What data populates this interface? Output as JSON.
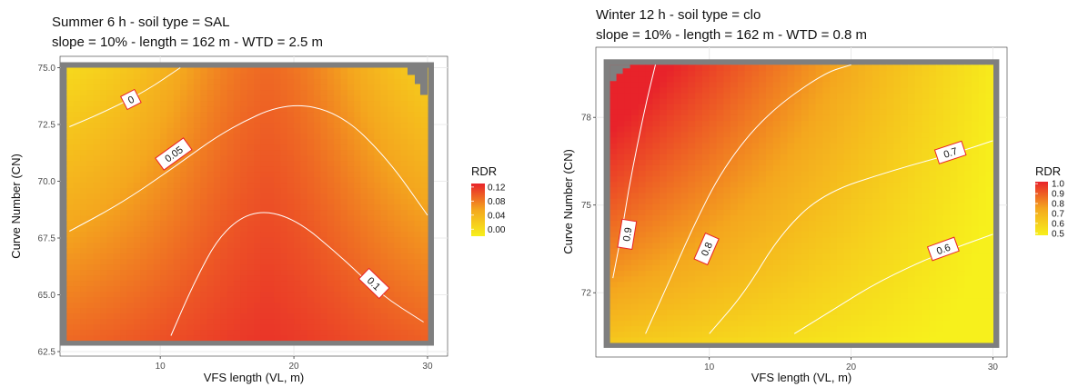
{
  "chart_data": [
    {
      "type": "heatmap",
      "title": "Summer 6 h - soil type = SAL",
      "subtitle": "slope = 10% - length = 162 m - WTD = 2.5 m",
      "xlabel": "VFS length (VL, m)",
      "ylabel": "Curve Number (CN)",
      "xlim": [
        2.5,
        31.5
      ],
      "ylim": [
        62.3,
        75.5
      ],
      "x_ticks": [
        10,
        20,
        30
      ],
      "x_tick_labels": [
        "10",
        "20",
        "30"
      ],
      "y_ticks": [
        62.5,
        65.0,
        67.5,
        70.0,
        72.5,
        75.0
      ],
      "y_tick_labels": [
        "62.5",
        "65.0",
        "67.5",
        "70.0",
        "72.5",
        "75.0"
      ],
      "data_x_range": [
        3,
        30
      ],
      "data_y_range": [
        63,
        75
      ],
      "legend_title": "RDR",
      "legend_ticks": [
        0.12,
        0.08,
        0.04,
        0.0
      ],
      "legend_tick_labels": [
        "0.12",
        "0.08",
        "0.04",
        "0.00"
      ],
      "color_range": [
        -0.02,
        0.13
      ],
      "color_low": "#f7f01c",
      "color_high": "#e8232a",
      "contour_levels": [
        "0",
        "0.05",
        "0.1"
      ],
      "contours": [
        {
          "level": "0",
          "points": [
            [
              3.2,
              72.4
            ],
            [
              6,
              73.1
            ],
            [
              9,
              74.0
            ],
            [
              11.5,
              75.0
            ]
          ],
          "label_at": [
            7.8,
            73.6
          ]
        },
        {
          "level": "0.05",
          "points": [
            [
              3.2,
              67.8
            ],
            [
              7,
              69.0
            ],
            [
              11,
              70.6
            ],
            [
              15,
              72.3
            ],
            [
              19.5,
              73.5
            ],
            [
              23.5,
              73.0
            ],
            [
              27,
              71.0
            ],
            [
              30,
              68.5
            ]
          ],
          "label_at": [
            11.0,
            71.2
          ]
        },
        {
          "level": "0.1",
          "points": [
            [
              10.8,
              63.2
            ],
            [
              12.5,
              65.5
            ],
            [
              14.5,
              67.7
            ],
            [
              17,
              68.75
            ],
            [
              20,
              68.4
            ],
            [
              23.5,
              66.7
            ],
            [
              26.5,
              65.0
            ],
            [
              29.7,
              63.8
            ]
          ],
          "label_at": [
            26.0,
            65.5
          ]
        }
      ]
    },
    {
      "type": "heatmap",
      "title": "Winter 12 h - soil type = clo",
      "subtitle": "slope = 10% - length = 162 m - WTD = 0.8 m",
      "xlabel": "VFS length (VL, m)",
      "ylabel": "Curve Number (CN)",
      "xlim": [
        2.0,
        31.0
      ],
      "ylim": [
        69.8,
        80.4
      ],
      "x_ticks": [
        10,
        20,
        30
      ],
      "x_tick_labels": [
        "10",
        "20",
        "30"
      ],
      "y_ticks": [
        72,
        75,
        78
      ],
      "y_tick_labels": [
        "72",
        "75",
        "78"
      ],
      "data_x_range": [
        3,
        30
      ],
      "data_y_range": [
        70.3,
        79.8
      ],
      "legend_title": "RDR",
      "legend_ticks": [
        1.0,
        0.9,
        0.8,
        0.7,
        0.6,
        0.5
      ],
      "legend_tick_labels": [
        "1.0",
        "0.9",
        "0.8",
        "0.7",
        "0.6",
        "0.5"
      ],
      "color_range": [
        0.48,
        1.02
      ],
      "color_low": "#f7f01c",
      "color_high": "#e8232a",
      "contour_levels": [
        "0.9",
        "0.8",
        "0.7",
        "0.6"
      ],
      "contours": [
        {
          "level": "0.9",
          "points": [
            [
              3.2,
              72.5
            ],
            [
              3.8,
              74.0
            ],
            [
              4.3,
              75.5
            ],
            [
              4.9,
              77.0
            ],
            [
              5.5,
              78.4
            ],
            [
              6.2,
              79.8
            ]
          ],
          "label_at": [
            4.2,
            74.0
          ]
        },
        {
          "level": "0.8",
          "points": [
            [
              5.5,
              70.6
            ],
            [
              7,
              72.2
            ],
            [
              8.8,
              74.2
            ],
            [
              11,
              76.3
            ],
            [
              14,
              78.1
            ],
            [
              18,
              79.5
            ],
            [
              20,
              79.8
            ]
          ],
          "label_at": [
            9.8,
            73.5
          ]
        },
        {
          "level": "0.7",
          "points": [
            [
              10,
              70.6
            ],
            [
              12.5,
              72.0
            ],
            [
              15,
              74.0
            ],
            [
              18,
              75.4
            ],
            [
              23,
              76.2
            ],
            [
              27.5,
              76.8
            ],
            [
              30,
              77.2
            ]
          ],
          "label_at": [
            27.0,
            76.8
          ]
        },
        {
          "level": "0.6",
          "points": [
            [
              16,
              70.6
            ],
            [
              19,
              71.5
            ],
            [
              22,
              72.4
            ],
            [
              26,
              73.3
            ],
            [
              30,
              74.0
            ]
          ],
          "label_at": [
            26.5,
            73.5
          ]
        }
      ]
    }
  ]
}
